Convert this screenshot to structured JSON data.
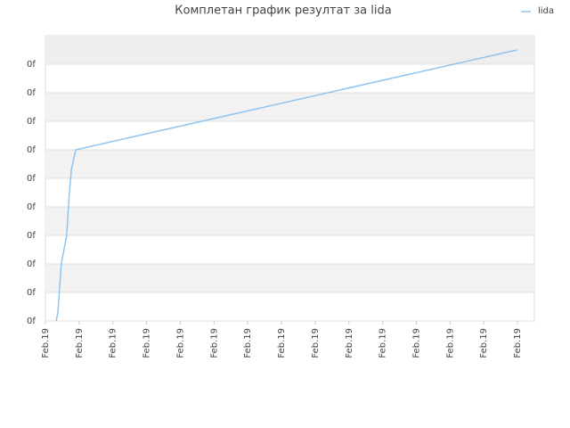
{
  "chart_data": {
    "type": "line",
    "title": "Комплетан график резултат за lida",
    "x": [
      0.32,
      0.37,
      0.47,
      0.63,
      0.71,
      0.77,
      0.9,
      13.98
    ],
    "series": [
      {
        "name": "lida",
        "color": "#90c4f0",
        "values": [
          0,
          0.3,
          2.0,
          3.0,
          4.5,
          5.3,
          6.0,
          9.5
        ]
      }
    ],
    "xlim": [
      0,
      14.5
    ],
    "xticks": [
      {
        "value": 0,
        "label": "Feb.19"
      },
      {
        "value": 1,
        "label": "Feb.19"
      },
      {
        "value": 2,
        "label": "Feb.19"
      },
      {
        "value": 3,
        "label": "Feb.19"
      },
      {
        "value": 4,
        "label": "Feb.19"
      },
      {
        "value": 5,
        "label": "Feb.19"
      },
      {
        "value": 6,
        "label": "Feb.19"
      },
      {
        "value": 7,
        "label": "Feb.19"
      },
      {
        "value": 8,
        "label": "Feb.19"
      },
      {
        "value": 9,
        "label": "Feb.19"
      },
      {
        "value": 10,
        "label": "Feb.19"
      },
      {
        "value": 11,
        "label": "Feb.19"
      },
      {
        "value": 12,
        "label": "Feb.19"
      },
      {
        "value": 13,
        "label": "Feb.19"
      },
      {
        "value": 14,
        "label": "Feb.19"
      }
    ],
    "ylim": [
      0,
      10
    ],
    "yticks": [
      {
        "value": 0,
        "label": "0f"
      },
      {
        "value": 1,
        "label": "0f"
      },
      {
        "value": 2,
        "label": "0f"
      },
      {
        "value": 3,
        "label": "0f"
      },
      {
        "value": 4,
        "label": "0f"
      },
      {
        "value": 5,
        "label": "0f"
      },
      {
        "value": 6,
        "label": "0f"
      },
      {
        "value": 7,
        "label": "0f"
      },
      {
        "value": 8,
        "label": "0f"
      },
      {
        "value": 9,
        "label": "0f"
      }
    ],
    "grid": true,
    "legend": "top-right"
  }
}
